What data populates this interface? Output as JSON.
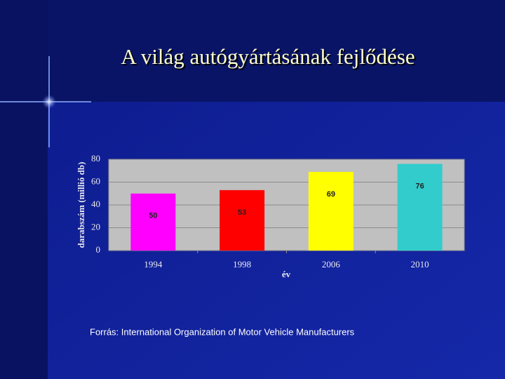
{
  "chart_data": {
    "type": "bar",
    "title": "A világ autógyártásának fejlődése",
    "y_label": "darabszám (millió db)",
    "x_label": "év",
    "categories": [
      "1994",
      "1998",
      "2006",
      "2010"
    ],
    "values": [
      50,
      53,
      69,
      76
    ],
    "colors": [
      "#ff00ff",
      "#ff0000",
      "#ffff00",
      "#33cccc"
    ],
    "ylim": [
      0,
      80
    ],
    "yticks": [
      0,
      20,
      40,
      60,
      80
    ],
    "grid": true,
    "source": "Forrás: International Organization of Motor Vehicle Manufacturers"
  }
}
